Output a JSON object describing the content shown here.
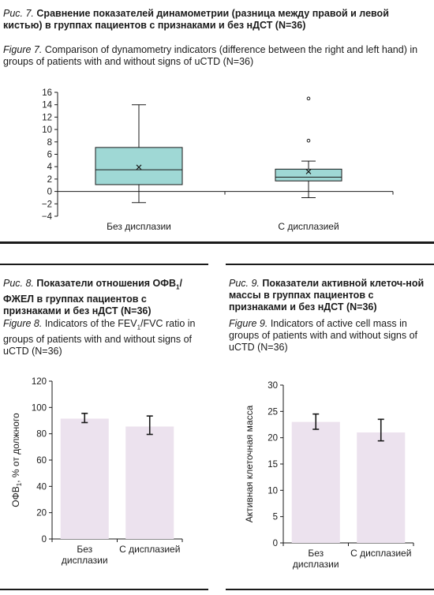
{
  "figure7": {
    "label_ru": "Рис. 7.",
    "title_ru": "Сравнение показателей динамометрии (разница между правой и левой кистью) в группах пациентов с признаками и без нДСТ (N=36)",
    "label_en": "Figure 7.",
    "title_en": "Comparison of dynamometry indicators (difference between the right and left hand) in groups of patients with and without signs of uCTD (N=36)"
  },
  "figure8": {
    "label_ru": "Рис. 8.",
    "title_ru_1": "Показатели отношения ОФВ",
    "title_ru_sub": "1",
    "title_ru_2": "/ ФЖЕЛ в группах пациентов с признаками и без нДСТ (N=36)",
    "label_en": "Figure 8.",
    "title_en_1": "Indicators of the FEV",
    "title_en_sub": "1",
    "title_en_2": "/FVC ratio in groups of patients with and without signs of uCTD (N=36)"
  },
  "figure9": {
    "label_ru": "Рис. 9.",
    "title_ru": "Показатели активной клеточ-ной массы в группах пациентов с признаками и без нДСТ (N=36)",
    "label_en": "Figure 9.",
    "title_en": "Indicators of active cell mass in groups of patients with and without signs of uCTD (N=36)"
  },
  "colors": {
    "box_fill": "#9fd8d5",
    "bar_fill": "#ece2ee",
    "ink": "#1a1a1a"
  },
  "chart_data": [
    {
      "type": "box",
      "categories": [
        "Без дисплазии",
        "С дисплазией"
      ],
      "ylim": [
        -4,
        16
      ],
      "yticks": [
        -4,
        -2,
        0,
        2,
        4,
        6,
        8,
        10,
        12,
        14,
        16
      ],
      "boxes": [
        {
          "min": -1.8,
          "q1": 1.1,
          "median": 3.5,
          "mean": 3.9,
          "q3": 7.1,
          "max": 14.0,
          "outliers": []
        },
        {
          "min": -1.0,
          "q1": 1.7,
          "median": 2.3,
          "mean": 3.2,
          "q3": 3.6,
          "max": 4.9,
          "outliers": [
            8.2,
            15.0
          ]
        }
      ]
    },
    {
      "type": "bar",
      "categories": [
        "Без дисплазии",
        "С дисплазией"
      ],
      "category_lines": [
        [
          "Без",
          "дисплазии"
        ],
        [
          "С дисплазией"
        ]
      ],
      "values": [
        91.5,
        85.5
      ],
      "errors": [
        [
          88.5,
          95.5
        ],
        [
          79.5,
          93.5
        ]
      ],
      "ylim": [
        0,
        120
      ],
      "yticks": [
        0,
        20,
        40,
        60,
        80,
        100,
        120
      ],
      "ylabel_1": "ОФВ",
      "ylabel_sub": "1",
      "ylabel_2": ", % от должного"
    },
    {
      "type": "bar",
      "categories": [
        "Без дисплазии",
        "С дисплазией"
      ],
      "category_lines": [
        [
          "Без",
          "дисплазии"
        ],
        [
          "С дисплазией"
        ]
      ],
      "values": [
        23.0,
        21.0
      ],
      "errors": [
        [
          21.6,
          24.5
        ],
        [
          19.4,
          23.5
        ]
      ],
      "ylim": [
        0,
        30
      ],
      "yticks": [
        0,
        5,
        10,
        15,
        20,
        25,
        30
      ],
      "ylabel": "Активная клеточная масса"
    }
  ]
}
